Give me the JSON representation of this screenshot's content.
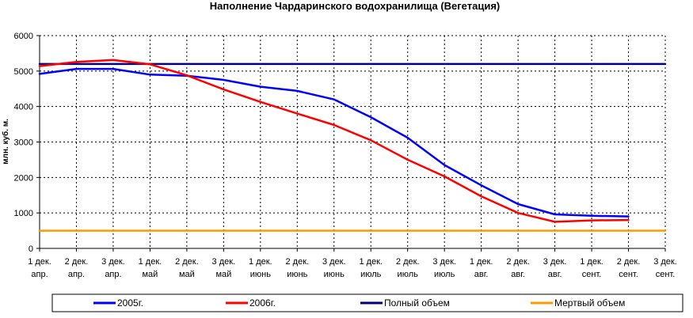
{
  "chart_data": {
    "type": "line",
    "title": "Наполнение Чардаринского водохранилища (Вегетация)",
    "ylabel": "млн. куб. м.",
    "xlabel": "",
    "ylim": [
      0,
      6000
    ],
    "yticks": [
      "0",
      "1000",
      "2000",
      "3000",
      "4000",
      "5000",
      "6000"
    ],
    "grid": true,
    "legend_position": "bottom",
    "categories": [
      [
        "1 дек.",
        "апр."
      ],
      [
        "2 дек.",
        "апр."
      ],
      [
        "3 дек.",
        "апр."
      ],
      [
        "1 дек.",
        "май"
      ],
      [
        "2 дек.",
        "май"
      ],
      [
        "3 дек.",
        "май"
      ],
      [
        "1 дек.",
        "июнь"
      ],
      [
        "2 дек.",
        "июнь"
      ],
      [
        "3 дек.",
        "июнь"
      ],
      [
        "1 дек.",
        "июль"
      ],
      [
        "2 дек.",
        "июль"
      ],
      [
        "3 дек.",
        "июль"
      ],
      [
        "1 дек.",
        "авг."
      ],
      [
        "2 дек.",
        "авг."
      ],
      [
        "3 дек.",
        "авг."
      ],
      [
        "1 дек.",
        "сент."
      ],
      [
        "2 дек.",
        "сент."
      ],
      [
        "3 дек.",
        "сент."
      ]
    ],
    "series": [
      {
        "name": "2005г.",
        "color": "#0000FF",
        "values": [
          4920,
          5060,
          5060,
          4900,
          4870,
          4750,
          4560,
          4440,
          4200,
          3700,
          3120,
          2350,
          1780,
          1250,
          960,
          920,
          900,
          null
        ]
      },
      {
        "name": "2006г.",
        "color": "#FF0000",
        "values": [
          5140,
          5260,
          5310,
          5190,
          4880,
          4480,
          4130,
          3800,
          3480,
          3050,
          2500,
          2030,
          1470,
          1000,
          750,
          790,
          800,
          null
        ]
      },
      {
        "name": "Полный объем",
        "color": "#000080",
        "values": [
          5200,
          5200,
          5200,
          5200,
          5200,
          5200,
          5200,
          5200,
          5200,
          5200,
          5200,
          5200,
          5200,
          5200,
          5200,
          5200,
          5200,
          5200
        ]
      },
      {
        "name": "Мертвый объем",
        "color": "#FF9900",
        "values": [
          500,
          500,
          500,
          500,
          500,
          500,
          500,
          500,
          500,
          500,
          500,
          500,
          500,
          500,
          500,
          500,
          500,
          500
        ]
      }
    ]
  }
}
